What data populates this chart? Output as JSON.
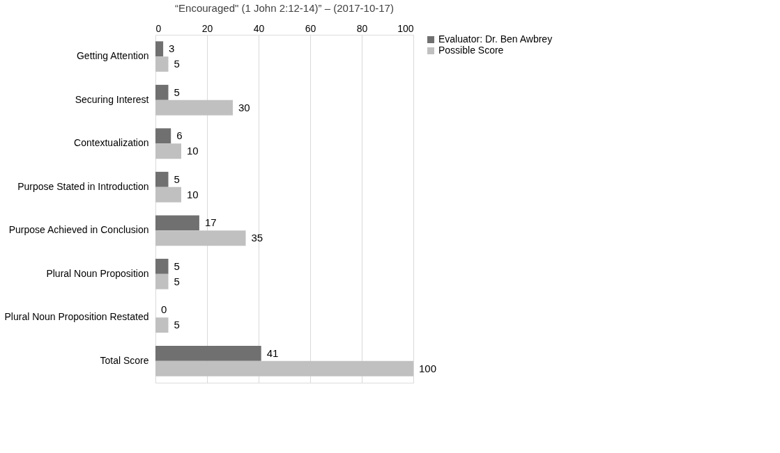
{
  "chart_data": {
    "type": "bar",
    "orientation": "horizontal",
    "title": "“Encouraged\" (1 John 2:12-14)” – (2017-10-17)",
    "categories": [
      "Getting Attention",
      "Securing Interest",
      "Contextualization",
      "Purpose Stated in Introduction",
      "Purpose Achieved in Conclusion",
      "Plural Noun Proposition",
      "Plural Noun Proposition Restated",
      "Total Score"
    ],
    "series": [
      {
        "name": "Evaluator: Dr. Ben Awbrey",
        "color": "#707070",
        "values": [
          3,
          5,
          6,
          5,
          17,
          5,
          0,
          41
        ]
      },
      {
        "name": "Possible Score",
        "color": "#c0c0c0",
        "values": [
          5,
          30,
          10,
          10,
          35,
          5,
          5,
          100
        ]
      }
    ],
    "xlim": [
      0,
      100
    ],
    "xticks": [
      0,
      20,
      40,
      60,
      80,
      100
    ],
    "grid": "x",
    "legend": "right",
    "data_labels": true
  }
}
